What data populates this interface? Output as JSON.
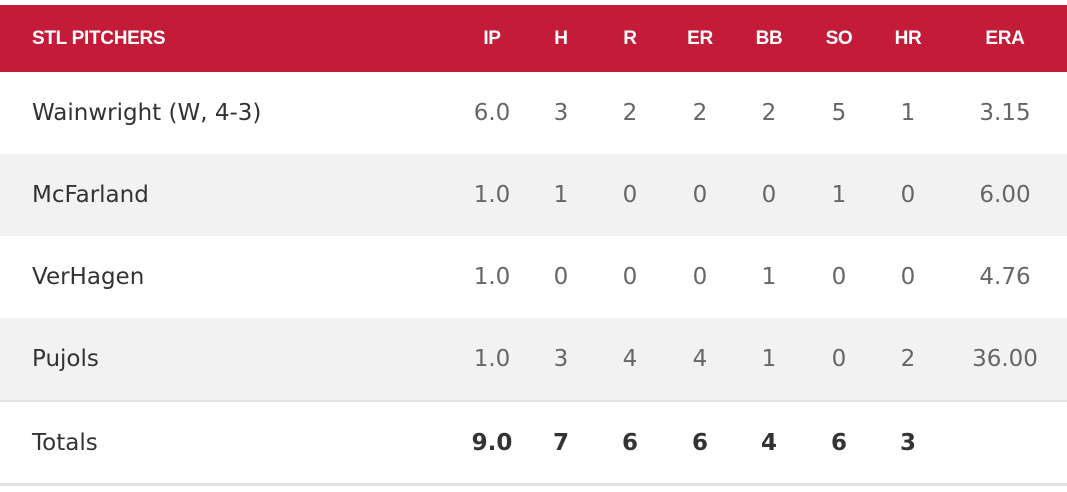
{
  "table": {
    "columns": [
      "STL PITCHERS",
      "IP",
      "H",
      "R",
      "ER",
      "BB",
      "SO",
      "HR",
      "ERA"
    ],
    "rows": [
      [
        "Wainwright (W, 4-3)",
        "6.0",
        "3",
        "2",
        "2",
        "2",
        "5",
        "1",
        "3.15"
      ],
      [
        "McFarland",
        "1.0",
        "1",
        "0",
        "0",
        "0",
        "1",
        "0",
        "6.00"
      ],
      [
        "VerHagen",
        "1.0",
        "0",
        "0",
        "0",
        "1",
        "0",
        "0",
        "4.76"
      ],
      [
        "Pujols",
        "1.0",
        "3",
        "4",
        "4",
        "1",
        "0",
        "2",
        "36.00"
      ]
    ],
    "totals": [
      "Totals",
      "9.0",
      "7",
      "6",
      "6",
      "4",
      "6",
      "3"
    ]
  }
}
